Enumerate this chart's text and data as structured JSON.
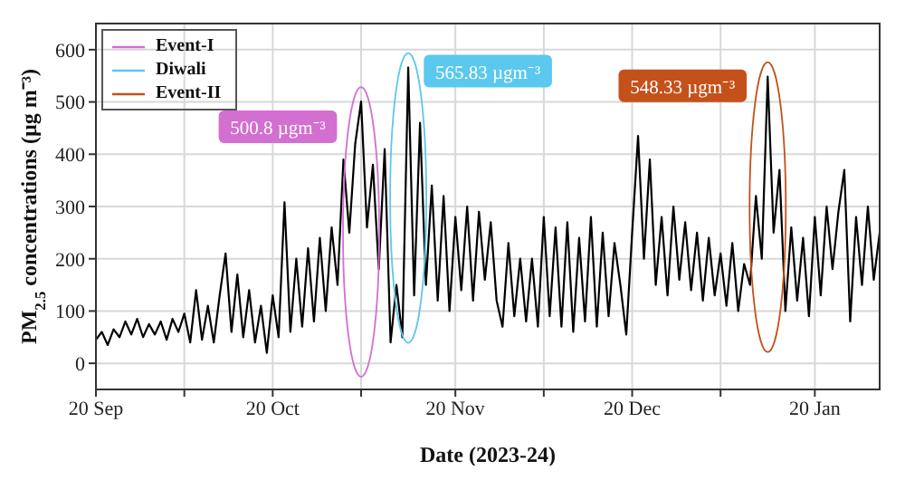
{
  "chart_data": {
    "type": "line",
    "xlabel": "Date (2023-24)",
    "ylabel": "PM$_{2.5}$ concentrations (µg m⁻³)",
    "x": [
      "2023-09-20",
      "2023-09-21",
      "2023-09-22",
      "2023-09-23",
      "2023-09-24",
      "2023-09-25",
      "2023-09-26",
      "2023-09-27",
      "2023-09-28",
      "2023-09-29",
      "2023-09-30",
      "2023-10-01",
      "2023-10-02",
      "2023-10-03",
      "2023-10-04",
      "2023-10-05",
      "2023-10-06",
      "2023-10-07",
      "2023-10-08",
      "2023-10-09",
      "2023-10-10",
      "2023-10-11",
      "2023-10-12",
      "2023-10-13",
      "2023-10-14",
      "2023-10-15",
      "2023-10-16",
      "2023-10-17",
      "2023-10-18",
      "2023-10-19",
      "2023-10-20",
      "2023-10-21",
      "2023-10-22",
      "2023-10-23",
      "2023-10-24",
      "2023-10-25",
      "2023-10-26",
      "2023-10-27",
      "2023-10-28",
      "2023-10-29",
      "2023-10-30",
      "2023-10-31",
      "2023-11-01",
      "2023-11-02",
      "2023-11-03",
      "2023-11-04",
      "2023-11-05",
      "2023-11-06",
      "2023-11-07",
      "2023-11-08",
      "2023-11-09",
      "2023-11-10",
      "2023-11-11",
      "2023-11-12",
      "2023-11-13",
      "2023-11-14",
      "2023-11-15",
      "2023-11-16",
      "2023-11-17",
      "2023-11-18",
      "2023-11-19",
      "2023-11-20",
      "2023-11-21",
      "2023-11-22",
      "2023-11-23",
      "2023-11-24",
      "2023-11-25",
      "2023-11-26",
      "2023-11-27",
      "2023-11-28",
      "2023-11-29",
      "2023-11-30",
      "2023-12-01",
      "2023-12-02",
      "2023-12-03",
      "2023-12-04",
      "2023-12-05",
      "2023-12-06",
      "2023-12-07",
      "2023-12-08",
      "2023-12-09",
      "2023-12-10",
      "2023-12-11",
      "2023-12-12",
      "2023-12-13",
      "2023-12-14",
      "2023-12-15",
      "2023-12-16",
      "2023-12-17",
      "2023-12-18",
      "2023-12-19",
      "2023-12-20",
      "2023-12-21",
      "2023-12-22",
      "2023-12-23",
      "2023-12-24",
      "2023-12-25",
      "2023-12-26",
      "2023-12-27",
      "2023-12-28",
      "2023-12-29",
      "2023-12-30",
      "2023-12-31",
      "2024-01-01",
      "2024-01-02",
      "2024-01-03",
      "2024-01-04",
      "2024-01-05",
      "2024-01-06",
      "2024-01-07",
      "2024-01-08",
      "2024-01-09",
      "2024-01-10",
      "2024-01-11",
      "2024-01-12",
      "2024-01-13",
      "2024-01-14",
      "2024-01-15",
      "2024-01-16",
      "2024-01-17",
      "2024-01-18",
      "2024-01-19",
      "2024-01-20",
      "2024-01-21",
      "2024-01-22",
      "2024-01-23",
      "2024-01-24",
      "2024-01-25",
      "2024-01-26",
      "2024-01-27",
      "2024-01-28",
      "2024-01-29",
      "2024-01-30",
      "2024-01-31"
    ],
    "series": [
      {
        "color": "#000000",
        "values": [
          45,
          60,
          35,
          65,
          50,
          80,
          55,
          85,
          50,
          75,
          55,
          80,
          45,
          85,
          60,
          95,
          40,
          140,
          45,
          110,
          40,
          130,
          210,
          60,
          170,
          50,
          140,
          40,
          110,
          20,
          130,
          50,
          308,
          60,
          200,
          70,
          220,
          80,
          240,
          100,
          260,
          150,
          390,
          250,
          420,
          500.8,
          260,
          380,
          180,
          410,
          40,
          150,
          50,
          565.83,
          130,
          460,
          150,
          340,
          120,
          320,
          100,
          280,
          140,
          300,
          120,
          290,
          160,
          270,
          120,
          70,
          230,
          90,
          200,
          80,
          200,
          70,
          280,
          90,
          260,
          70,
          270,
          60,
          240,
          80,
          280,
          70,
          250,
          90,
          230,
          150,
          55,
          250,
          435,
          200,
          390,
          150,
          280,
          130,
          300,
          160,
          270,
          140,
          250,
          120,
          240,
          130,
          210,
          110,
          230,
          100,
          190,
          150,
          320,
          200,
          548.33,
          250,
          370,
          100,
          260,
          120,
          240,
          90,
          280,
          130,
          300,
          180,
          290,
          370,
          80,
          280,
          150,
          300,
          160,
          250
        ]
      }
    ],
    "xlim": [
      "2023-09-20",
      "2024-01-31"
    ],
    "xticks": [
      {
        "value": "2023-09-20",
        "label": "20 Sep"
      },
      {
        "value": "2023-10-05",
        "label": null
      },
      {
        "value": "2023-10-20",
        "label": "20 Oct"
      },
      {
        "value": "2023-11-04",
        "label": null
      },
      {
        "value": "2023-11-20",
        "label": "20 Nov"
      },
      {
        "value": "2023-12-05",
        "label": null
      },
      {
        "value": "2023-12-20",
        "label": "20 Dec"
      },
      {
        "value": "2024-01-04",
        "label": null
      },
      {
        "value": "2024-01-20",
        "label": "20 Jan"
      }
    ],
    "ylim": [
      -50,
      650
    ],
    "yticks": [
      0,
      100,
      200,
      300,
      400,
      500,
      600
    ],
    "grid": true,
    "line_style": "solid",
    "marker": "none",
    "annotations": [
      {
        "text": "500.8 µgm⁻³",
        "x": "2023-11-04",
        "y": 500.8
      },
      {
        "text": "565.83 µgm⁻³",
        "x": "2023-11-12",
        "y": 565.83
      },
      {
        "text": "548.33 µgm⁻³",
        "x": "2024-01-12",
        "y": 548.33
      },
      "Event-I",
      "Diwali",
      "Event-II"
    ]
  }
}
